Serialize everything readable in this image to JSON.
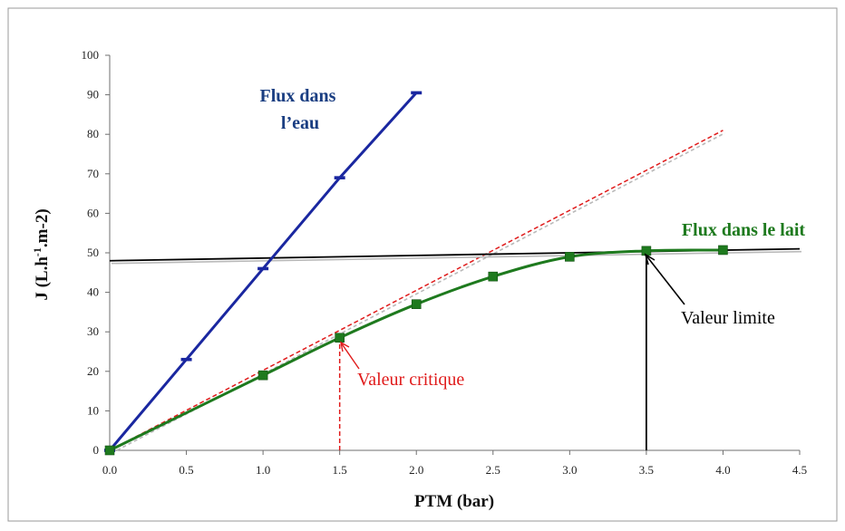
{
  "chart_data": {
    "type": "line",
    "xlabel": "PTM (bar)",
    "ylabel": {
      "base": "J (L.h",
      "sup": "-1",
      "rest": ".m-2)"
    },
    "xlim": [
      0,
      4.5
    ],
    "ylim": [
      0,
      100
    ],
    "x_ticks": [
      "0.0",
      "0.5",
      "1.0",
      "1.5",
      "2.0",
      "2.5",
      "3.0",
      "3.5",
      "4.0",
      "4.5"
    ],
    "y_ticks": [
      "0",
      "10",
      "20",
      "30",
      "40",
      "50",
      "60",
      "70",
      "80",
      "90",
      "100"
    ],
    "grid": false,
    "series": [
      {
        "key": "water",
        "color": "#1a27a0",
        "marker": "dash",
        "x": [
          0,
          0.5,
          1.0,
          1.5,
          2.0
        ],
        "y": [
          0,
          23,
          46,
          69,
          90.5
        ]
      },
      {
        "key": "milk",
        "color": "#1e7a1e",
        "marker": "square",
        "x": [
          0,
          1.0,
          1.5,
          2.0,
          2.5,
          3.0,
          3.5,
          4.0
        ],
        "y": [
          0,
          19,
          28.5,
          37,
          44,
          49,
          50.5,
          50.7
        ]
      }
    ],
    "guide_lines": [
      {
        "key": "critical-slope",
        "color": "#e01b1b",
        "style": "dashed",
        "x": [
          0,
          4.0
        ],
        "y": [
          0,
          81
        ]
      },
      {
        "key": "limit-plateau",
        "color": "#000000",
        "style": "solid",
        "x": [
          0,
          4.5
        ],
        "y": [
          48,
          51
        ]
      },
      {
        "key": "critical-drop",
        "color": "#e01b1b",
        "style": "dashed",
        "x": [
          1.5,
          1.5
        ],
        "y": [
          0,
          28.5
        ]
      },
      {
        "key": "limit-drop",
        "color": "#000000",
        "style": "solid",
        "x": [
          3.5,
          3.5
        ],
        "y": [
          0,
          50.5
        ]
      }
    ],
    "annotations": {
      "water_label": [
        "Flux dans",
        "l’eau"
      ],
      "milk_label": "Flux dans le lait",
      "critical_label": "Valeur critique",
      "limit_label": "Valeur limite"
    },
    "colors": {
      "water": "#1a27a0",
      "milk": "#1e7a1e",
      "critical": "#e01b1b",
      "limit": "#000000"
    }
  }
}
